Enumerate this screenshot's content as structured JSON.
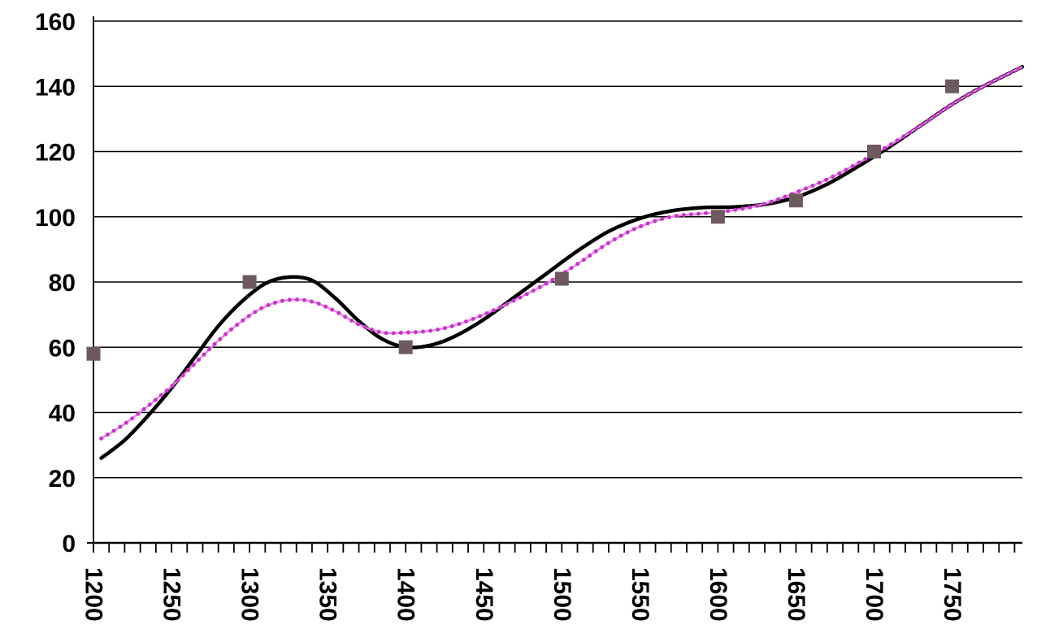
{
  "chart_data": {
    "type": "line",
    "title": "",
    "xlabel": "",
    "ylabel": "",
    "xlim": [
      1200,
      1795
    ],
    "ylim": [
      0,
      160
    ],
    "x_ticks": [
      1200,
      1250,
      1300,
      1350,
      1400,
      1450,
      1500,
      1550,
      1600,
      1650,
      1700,
      1750
    ],
    "x_tick_labels": [
      "1200",
      "1250",
      "1300",
      "1350",
      "1400",
      "1450",
      "1500",
      "1550",
      "1600",
      "1650",
      "1700",
      "1750"
    ],
    "y_ticks": [
      0,
      20,
      40,
      60,
      80,
      100,
      120,
      140,
      160
    ],
    "y_tick_labels": [
      "0",
      "20",
      "40",
      "60",
      "80",
      "100",
      "120",
      "140",
      "160"
    ],
    "x_minor_step": 10,
    "grid": "horizontal",
    "legend": "none",
    "series": [
      {
        "style": "markers",
        "color": "#6e5a5e",
        "marker": "square",
        "x": [
          1200,
          1300,
          1400,
          1500,
          1600,
          1650,
          1700,
          1750
        ],
        "y": [
          58,
          80,
          60,
          81,
          100,
          105,
          120,
          140
        ]
      },
      {
        "style": "solid-line",
        "color": "#000000",
        "x": [
          1205,
          1220,
          1235,
          1250,
          1265,
          1280,
          1295,
          1310,
          1325,
          1340,
          1355,
          1370,
          1385,
          1400,
          1415,
          1430,
          1450,
          1470,
          1490,
          1510,
          1530,
          1550,
          1570,
          1590,
          1610,
          1630,
          1650,
          1670,
          1690,
          1710,
          1730,
          1750,
          1770,
          1795
        ],
        "y": [
          26,
          31.5,
          39,
          47.5,
          57,
          66.5,
          74,
          79.5,
          81.5,
          80.5,
          75,
          68,
          62.5,
          60,
          60.5,
          63,
          68.5,
          75.5,
          82.5,
          89.5,
          95.5,
          99.5,
          101.8,
          102.8,
          103,
          103.8,
          106,
          110,
          115.5,
          121.5,
          128,
          134.5,
          140,
          146
        ]
      },
      {
        "style": "dotted-line",
        "color": "#cc33cc",
        "x": [
          1205,
          1220,
          1235,
          1250,
          1265,
          1280,
          1295,
          1310,
          1325,
          1340,
          1355,
          1370,
          1385,
          1400,
          1415,
          1430,
          1450,
          1470,
          1490,
          1510,
          1530,
          1550,
          1570,
          1590,
          1610,
          1630,
          1650,
          1670,
          1690,
          1710,
          1730,
          1750,
          1770,
          1795
        ],
        "y": [
          32,
          36.5,
          42,
          48,
          55,
          62,
          68,
          72.5,
          74.5,
          74,
          71,
          67,
          64.5,
          64.5,
          65,
          66.5,
          70,
          74.5,
          79.5,
          85.5,
          92,
          97,
          100,
          101,
          102,
          104,
          107.5,
          111.5,
          116.5,
          122,
          128,
          134.5,
          140,
          146
        ]
      }
    ]
  }
}
